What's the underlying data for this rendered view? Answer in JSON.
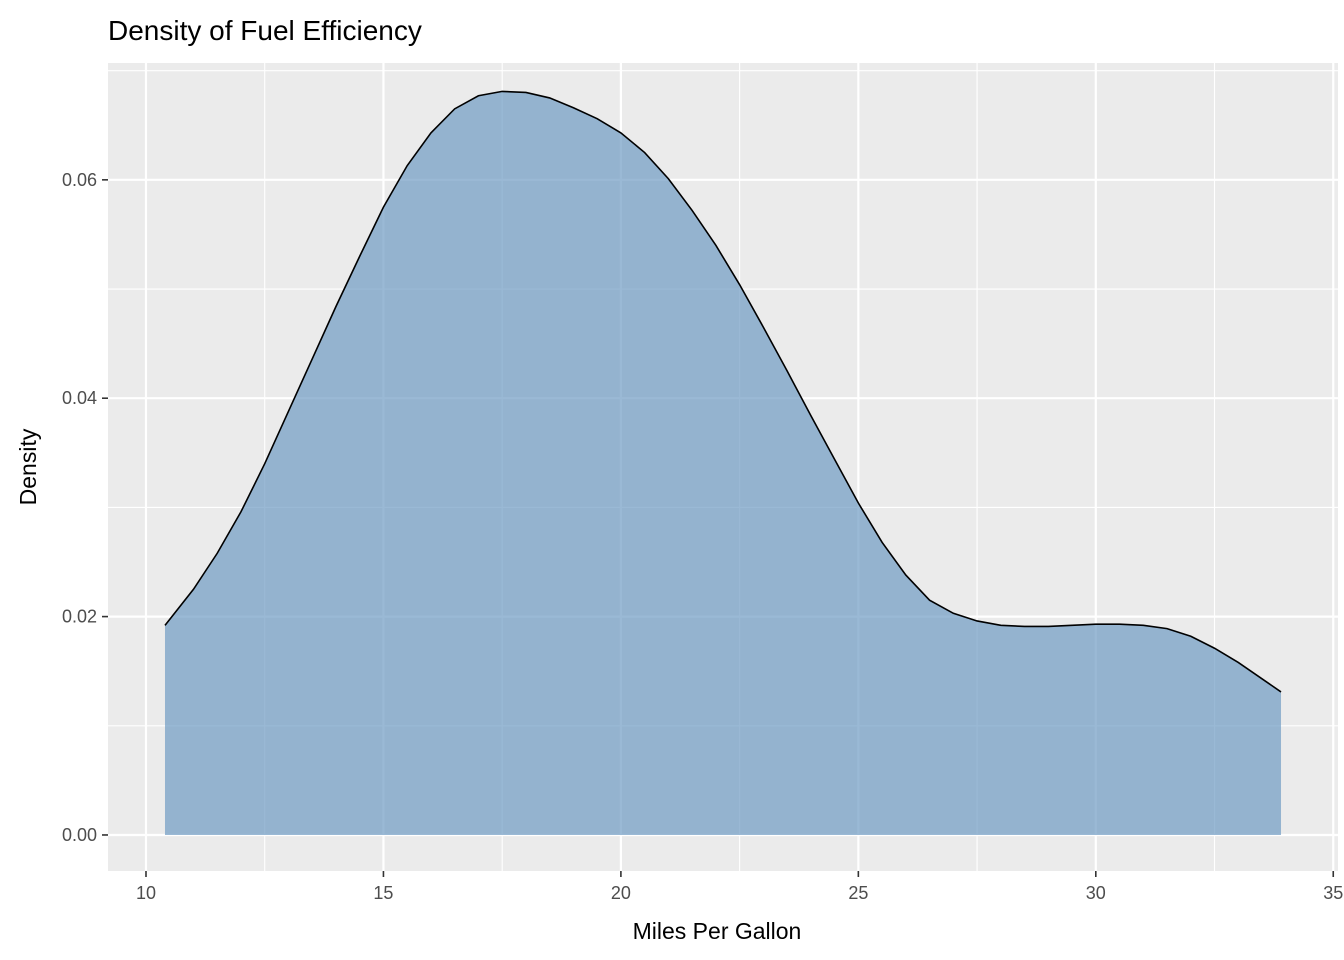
{
  "chart_data": {
    "type": "area",
    "title": "Density of Fuel Efficiency",
    "xlabel": "Miles Per Gallon",
    "ylabel": "Density",
    "xlim": [
      9.2,
      35.1
    ],
    "ylim": [
      -0.0033,
      0.0707
    ],
    "x_ticks": [
      10,
      15,
      20,
      25,
      30,
      35
    ],
    "x_tick_labels": [
      "10",
      "15",
      "20",
      "25",
      "30",
      "35"
    ],
    "y_ticks": [
      0.0,
      0.02,
      0.04,
      0.06
    ],
    "y_tick_labels": [
      "0.00",
      "0.02",
      "0.04",
      "0.06"
    ],
    "grid": true,
    "legend": "none",
    "series": [
      {
        "x": [
          10.4,
          11.0,
          11.5,
          12.0,
          12.5,
          13.0,
          13.5,
          14.0,
          14.5,
          15.0,
          15.5,
          16.0,
          16.5,
          17.0,
          17.5,
          18.0,
          18.5,
          19.0,
          19.5,
          20.0,
          20.5,
          21.0,
          21.5,
          22.0,
          22.5,
          23.0,
          23.5,
          24.0,
          24.5,
          25.0,
          25.5,
          26.0,
          26.5,
          27.0,
          27.5,
          28.0,
          28.5,
          29.0,
          29.5,
          30.0,
          30.5,
          31.0,
          31.5,
          32.0,
          32.5,
          33.0,
          33.5,
          33.9
        ],
        "values": [
          0.0192,
          0.0225,
          0.0258,
          0.0296,
          0.034,
          0.0388,
          0.0436,
          0.0484,
          0.053,
          0.0575,
          0.0613,
          0.0643,
          0.0665,
          0.0677,
          0.0681,
          0.068,
          0.0675,
          0.0666,
          0.0656,
          0.0643,
          0.0625,
          0.0601,
          0.0572,
          0.054,
          0.0504,
          0.0465,
          0.0425,
          0.0384,
          0.0344,
          0.0304,
          0.0268,
          0.0238,
          0.0215,
          0.0203,
          0.0196,
          0.0192,
          0.0191,
          0.0191,
          0.0192,
          0.0193,
          0.0193,
          0.0192,
          0.0189,
          0.0182,
          0.0171,
          0.0158,
          0.0143,
          0.0131
        ]
      }
    ],
    "colors": {
      "fill": "#6f9bc3",
      "fill_opacity": 0.7,
      "outline": "#000000",
      "panel": "#ebebeb",
      "grid": "#ffffff"
    }
  }
}
